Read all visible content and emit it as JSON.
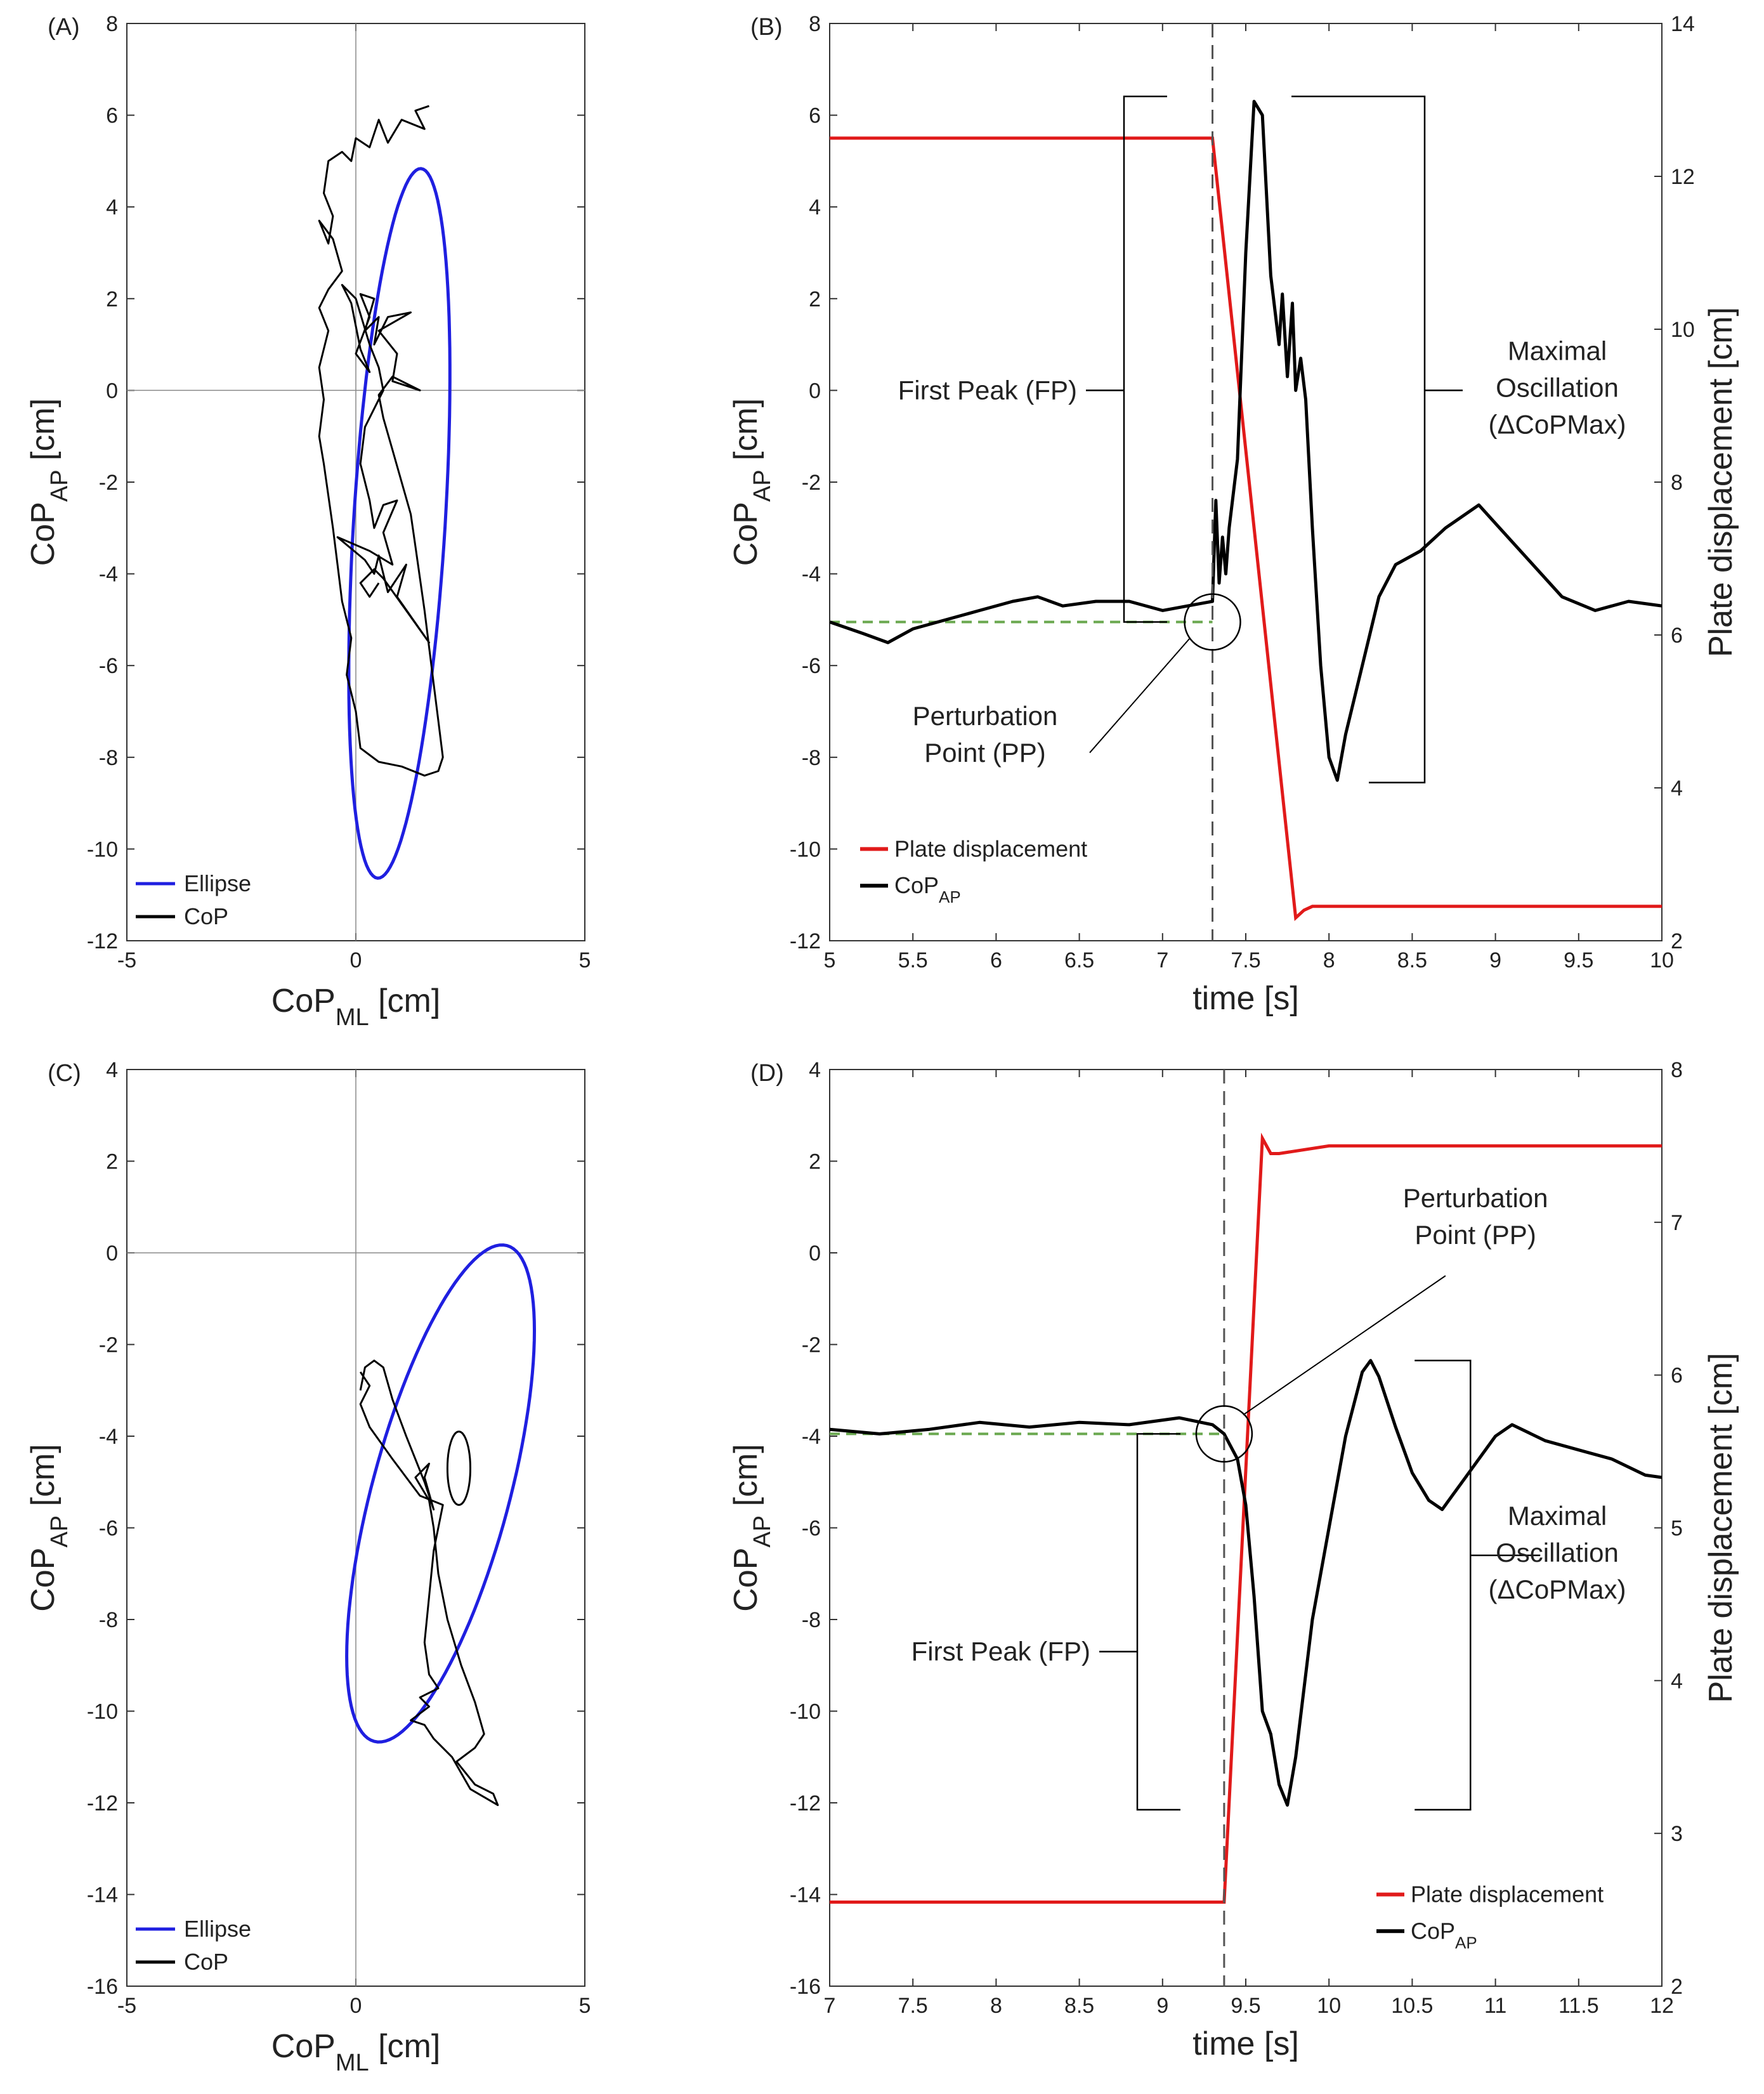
{
  "chart_data": [
    {
      "panel": "(A)",
      "type": "line",
      "xlabel": "CoP",
      "xlabel_sub": "ML",
      "xlabel_unit": " [cm]",
      "ylabel": "CoP",
      "ylabel_sub": "AP",
      "ylabel_unit": " [cm]",
      "xlim": [
        -5,
        5
      ],
      "ylim": [
        -12,
        8
      ],
      "xticks": [
        "-5",
        "0",
        "5"
      ],
      "yticks": [
        "-12",
        "-10",
        "-8",
        "-6",
        "-4",
        "-2",
        "0",
        "2",
        "4",
        "6",
        "8"
      ],
      "legend": [
        {
          "label": "Ellipse",
          "color": "#1f1fe0"
        },
        {
          "label": "CoP",
          "color": "#000000"
        }
      ],
      "ellipse": {
        "center": [
          0.95,
          -2.9
        ],
        "semi_major": 7.75,
        "semi_minor": 1.0,
        "angle_deg_from_vertical": -3.5
      },
      "cop_points": [
        [
          1.6,
          6.2
        ],
        [
          1.3,
          6.1
        ],
        [
          1.5,
          5.7
        ],
        [
          1.0,
          5.9
        ],
        [
          0.7,
          5.4
        ],
        [
          0.5,
          5.9
        ],
        [
          0.3,
          5.3
        ],
        [
          0.0,
          5.5
        ],
        [
          -0.1,
          5.0
        ],
        [
          -0.3,
          5.2
        ],
        [
          -0.6,
          5.0
        ],
        [
          -0.7,
          4.3
        ],
        [
          -0.5,
          3.8
        ],
        [
          -0.6,
          3.2
        ],
        [
          -0.8,
          3.7
        ],
        [
          -0.5,
          3.3
        ],
        [
          -0.3,
          2.6
        ],
        [
          -0.6,
          2.2
        ],
        [
          -0.8,
          1.8
        ],
        [
          -0.6,
          1.3
        ],
        [
          -0.8,
          0.5
        ],
        [
          -0.7,
          -0.2
        ],
        [
          -0.8,
          -1.0
        ],
        [
          -0.7,
          -1.6
        ],
        [
          -0.6,
          -2.3
        ],
        [
          -0.5,
          -3.0
        ],
        [
          -0.4,
          -3.8
        ],
        [
          -0.3,
          -4.6
        ],
        [
          -0.1,
          -5.4
        ],
        [
          -0.2,
          -6.2
        ],
        [
          0.0,
          -7.0
        ],
        [
          0.1,
          -7.8
        ],
        [
          0.5,
          -8.1
        ],
        [
          1.0,
          -8.2
        ],
        [
          1.5,
          -8.4
        ],
        [
          1.8,
          -8.3
        ],
        [
          1.9,
          -8.0
        ],
        [
          1.8,
          -7.2
        ],
        [
          1.7,
          -6.4
        ],
        [
          1.6,
          -5.6
        ],
        [
          1.5,
          -4.8
        ],
        [
          1.4,
          -4.1
        ],
        [
          1.3,
          -3.4
        ],
        [
          1.2,
          -2.7
        ],
        [
          1.0,
          -2.0
        ],
        [
          0.8,
          -1.3
        ],
        [
          0.6,
          -0.6
        ],
        [
          0.5,
          -0.1
        ],
        [
          0.8,
          0.3
        ],
        [
          1.4,
          0.0
        ],
        [
          0.8,
          0.2
        ],
        [
          0.9,
          0.8
        ],
        [
          0.5,
          1.3
        ],
        [
          1.2,
          1.7
        ],
        [
          0.7,
          1.6
        ],
        [
          0.4,
          1.0
        ],
        [
          0.5,
          1.6
        ],
        [
          0.2,
          1.3
        ],
        [
          0.4,
          2.0
        ],
        [
          0.1,
          2.1
        ],
        [
          0.3,
          1.6
        ],
        [
          0.0,
          0.8
        ],
        [
          0.3,
          0.4
        ],
        [
          0.1,
          0.9
        ],
        [
          -0.1,
          1.9
        ],
        [
          -0.3,
          2.3
        ],
        [
          0.0,
          2.0
        ],
        [
          0.3,
          1.0
        ],
        [
          0.5,
          0.5
        ],
        [
          0.6,
          0.0
        ],
        [
          0.2,
          -0.8
        ],
        [
          0.1,
          -1.6
        ],
        [
          0.3,
          -2.4
        ],
        [
          0.4,
          -3.0
        ],
        [
          0.6,
          -2.5
        ],
        [
          0.9,
          -2.4
        ],
        [
          0.6,
          -3.1
        ],
        [
          0.8,
          -3.8
        ],
        [
          0.3,
          -3.5
        ],
        [
          -0.4,
          -3.2
        ],
        [
          0.2,
          -3.7
        ],
        [
          0.4,
          -4.0
        ],
        [
          0.5,
          -3.6
        ],
        [
          0.7,
          -4.4
        ],
        [
          1.1,
          -3.8
        ],
        [
          0.9,
          -4.5
        ],
        [
          1.6,
          -5.5
        ],
        [
          0.6,
          -4.1
        ],
        [
          0.4,
          -3.9
        ],
        [
          0.1,
          -4.2
        ],
        [
          0.3,
          -4.5
        ],
        [
          0.5,
          -4.2
        ]
      ]
    },
    {
      "panel": "(B)",
      "type": "line",
      "xlabel": "time [s]",
      "ylabel": "CoP",
      "ylabel_sub": "AP",
      "ylabel_unit": " [cm]",
      "y2label": "Plate displacement [cm]",
      "xlim": [
        5,
        10
      ],
      "ylim": [
        -12,
        8
      ],
      "y2lim": [
        2,
        14
      ],
      "xticks": [
        "5",
        "5.5",
        "6",
        "6.5",
        "7",
        "7.5",
        "8",
        "8.5",
        "9",
        "9.5",
        "10"
      ],
      "yticks": [
        "-12",
        "-10",
        "-8",
        "-6",
        "-4",
        "-2",
        "0",
        "2",
        "4",
        "6",
        "8"
      ],
      "y2ticks": [
        "2",
        "4",
        "6",
        "8",
        "10",
        "12",
        "14"
      ],
      "perturbation_time": 7.3,
      "baseline_cop": -5.05,
      "legend": [
        {
          "label": "Plate displacement",
          "color": "#e11a1a"
        },
        {
          "label": "CoP",
          "sub": "AP",
          "color": "#000000"
        }
      ],
      "series": [
        {
          "name": "Plate displacement",
          "axis": "right",
          "color": "#e11a1a",
          "x": [
            5,
            7.3,
            7.8,
            7.85,
            7.9,
            10
          ],
          "y": [
            12.5,
            12.5,
            2.3,
            2.4,
            2.45,
            2.45
          ]
        },
        {
          "name": "CoP_AP",
          "axis": "left",
          "color": "#000000",
          "x": [
            5.0,
            5.2,
            5.35,
            5.5,
            5.7,
            5.9,
            6.1,
            6.25,
            6.4,
            6.6,
            6.8,
            7.0,
            7.15,
            7.3,
            7.32,
            7.34,
            7.36,
            7.38,
            7.4,
            7.45,
            7.5,
            7.55,
            7.6,
            7.65,
            7.7,
            7.72,
            7.75,
            7.78,
            7.8,
            7.83,
            7.86,
            7.9,
            7.95,
            8.0,
            8.05,
            8.1,
            8.2,
            8.3,
            8.4,
            8.55,
            8.7,
            8.9,
            9.0,
            9.2,
            9.4,
            9.6,
            9.8,
            10.0
          ],
          "y": [
            -5.05,
            -5.3,
            -5.5,
            -5.2,
            -5.0,
            -4.8,
            -4.6,
            -4.5,
            -4.7,
            -4.6,
            -4.6,
            -4.8,
            -4.7,
            -4.6,
            -2.4,
            -4.2,
            -3.2,
            -4.0,
            -3.0,
            -1.5,
            3.0,
            6.3,
            6.0,
            2.5,
            1.0,
            2.1,
            0.3,
            1.9,
            0.0,
            0.7,
            -0.2,
            -3.0,
            -6.0,
            -8.0,
            -8.5,
            -7.5,
            -6.0,
            -4.5,
            -3.8,
            -3.5,
            -3.0,
            -2.5,
            -2.9,
            -3.7,
            -4.5,
            -4.8,
            -4.6,
            -4.7
          ]
        }
      ],
      "annotations": [
        {
          "text": "First Peak (FP)",
          "lines": [
            "First Peak (FP)"
          ]
        },
        {
          "text": "Maximal Oscillation (ΔCoPMax)",
          "lines": [
            "Maximal",
            "Oscillation",
            "(ΔCoPMax)"
          ]
        },
        {
          "text": "Perturbation Point (PP)",
          "lines": [
            "Perturbation",
            "Point (PP)"
          ]
        }
      ]
    },
    {
      "panel": "(C)",
      "type": "line",
      "xlabel": "CoP",
      "xlabel_sub": "ML",
      "xlabel_unit": " [cm]",
      "ylabel": "CoP",
      "ylabel_sub": "AP",
      "ylabel_unit": " [cm]",
      "xlim": [
        -5,
        5
      ],
      "ylim": [
        -16,
        4
      ],
      "xticks": [
        "-5",
        "0",
        "5"
      ],
      "yticks": [
        "-16",
        "-14",
        "-12",
        "-10",
        "-8",
        "-6",
        "-4",
        "-2",
        "0",
        "2",
        "4"
      ],
      "legend": [
        {
          "label": "Ellipse",
          "color": "#1f1fe0"
        },
        {
          "label": "CoP",
          "color": "#000000"
        }
      ],
      "ellipse": {
        "center": [
          1.85,
          -5.25
        ],
        "semi_major": 5.6,
        "semi_minor": 1.5,
        "angle_deg_from_vertical": -15
      },
      "cop_points": [
        [
          0.1,
          -3.0
        ],
        [
          0.2,
          -2.5
        ],
        [
          0.4,
          -2.35
        ],
        [
          0.6,
          -2.5
        ],
        [
          0.8,
          -3.2
        ],
        [
          1.1,
          -4.0
        ],
        [
          1.5,
          -5.0
        ],
        [
          1.7,
          -5.6
        ],
        [
          1.5,
          -4.9
        ],
        [
          1.6,
          -4.6
        ],
        [
          1.3,
          -4.9
        ],
        [
          1.6,
          -5.4
        ],
        [
          1.7,
          -6.0
        ],
        [
          1.8,
          -7.0
        ],
        [
          2.0,
          -8.0
        ],
        [
          2.3,
          -9.0
        ],
        [
          2.6,
          -9.8
        ],
        [
          2.8,
          -10.5
        ],
        [
          2.6,
          -10.8
        ],
        [
          2.2,
          -11.1
        ],
        [
          2.6,
          -11.6
        ],
        [
          3.0,
          -11.8
        ],
        [
          3.1,
          -12.05
        ],
        [
          2.5,
          -11.7
        ],
        [
          2.1,
          -11.0
        ],
        [
          1.7,
          -10.6
        ],
        [
          1.5,
          -10.3
        ],
        [
          1.2,
          -10.2
        ],
        [
          1.6,
          -9.9
        ],
        [
          1.4,
          -9.7
        ],
        [
          1.8,
          -9.5
        ],
        [
          1.6,
          -9.2
        ],
        [
          1.5,
          -8.5
        ],
        [
          1.6,
          -7.5
        ],
        [
          1.7,
          -6.5
        ],
        [
          1.9,
          -5.5
        ],
        [
          1.4,
          -5.3
        ],
        [
          0.8,
          -4.5
        ],
        [
          0.3,
          -3.8
        ],
        [
          0.1,
          -3.3
        ],
        [
          0.3,
          -2.9
        ],
        [
          0.1,
          -2.6
        ]
      ],
      "cop_loop": {
        "center": [
          2.25,
          -4.7
        ],
        "rx": 0.25,
        "ry": 0.8
      }
    },
    {
      "panel": "(D)",
      "type": "line",
      "xlabel": "time [s]",
      "ylabel": "CoP",
      "ylabel_sub": "AP",
      "ylabel_unit": " [cm]",
      "y2label": "Plate displacement [cm]",
      "xlim": [
        7,
        12
      ],
      "ylim": [
        -16,
        4
      ],
      "y2lim": [
        2,
        8
      ],
      "xticks": [
        "7",
        "7.5",
        "8",
        "8.5",
        "9",
        "9.5",
        "10",
        "10.5",
        "11",
        "11.5",
        "12"
      ],
      "yticks": [
        "-16",
        "-14",
        "-12",
        "-10",
        "-8",
        "-6",
        "-4",
        "-2",
        "0",
        "2",
        "4"
      ],
      "y2ticks": [
        "2",
        "3",
        "4",
        "5",
        "6",
        "7",
        "8"
      ],
      "perturbation_time": 9.37,
      "baseline_cop": -3.95,
      "legend": [
        {
          "label": "Plate displacement",
          "color": "#e11a1a"
        },
        {
          "label": "CoP",
          "sub": "AP",
          "color": "#000000"
        }
      ],
      "series": [
        {
          "name": "Plate displacement",
          "axis": "right",
          "color": "#e11a1a",
          "x": [
            7,
            9.37,
            9.6,
            9.65,
            9.7,
            10.0,
            12
          ],
          "y": [
            2.55,
            2.55,
            7.55,
            7.45,
            7.45,
            7.5,
            7.5
          ]
        },
        {
          "name": "CoP_AP",
          "axis": "left",
          "color": "#000000",
          "x": [
            7.0,
            7.3,
            7.6,
            7.9,
            8.2,
            8.5,
            8.8,
            9.1,
            9.3,
            9.37,
            9.45,
            9.5,
            9.55,
            9.6,
            9.65,
            9.7,
            9.75,
            9.8,
            9.9,
            10.0,
            10.1,
            10.2,
            10.25,
            10.3,
            10.4,
            10.5,
            10.6,
            10.68,
            10.8,
            11.0,
            11.1,
            11.3,
            11.5,
            11.7,
            11.9,
            12.0
          ],
          "y": [
            -3.85,
            -3.95,
            -3.85,
            -3.7,
            -3.8,
            -3.7,
            -3.75,
            -3.6,
            -3.75,
            -3.95,
            -4.5,
            -5.5,
            -7.5,
            -10.0,
            -10.5,
            -11.6,
            -12.05,
            -11.0,
            -8.0,
            -6.0,
            -4.0,
            -2.6,
            -2.35,
            -2.7,
            -3.8,
            -4.8,
            -5.4,
            -5.6,
            -5.0,
            -4.0,
            -3.75,
            -4.1,
            -4.3,
            -4.5,
            -4.85,
            -4.9
          ]
        }
      ],
      "annotations": [
        {
          "text": "First Peak (FP)",
          "lines": [
            "First Peak (FP)"
          ]
        },
        {
          "text": "Maximal Oscillation (ΔCoPMax)",
          "lines": [
            "Maximal",
            "Oscillation",
            "(ΔCoPMax)"
          ]
        },
        {
          "text": "Perturbation Point (PP)",
          "lines": [
            "Perturbation",
            "Point (PP)"
          ]
        }
      ]
    }
  ]
}
